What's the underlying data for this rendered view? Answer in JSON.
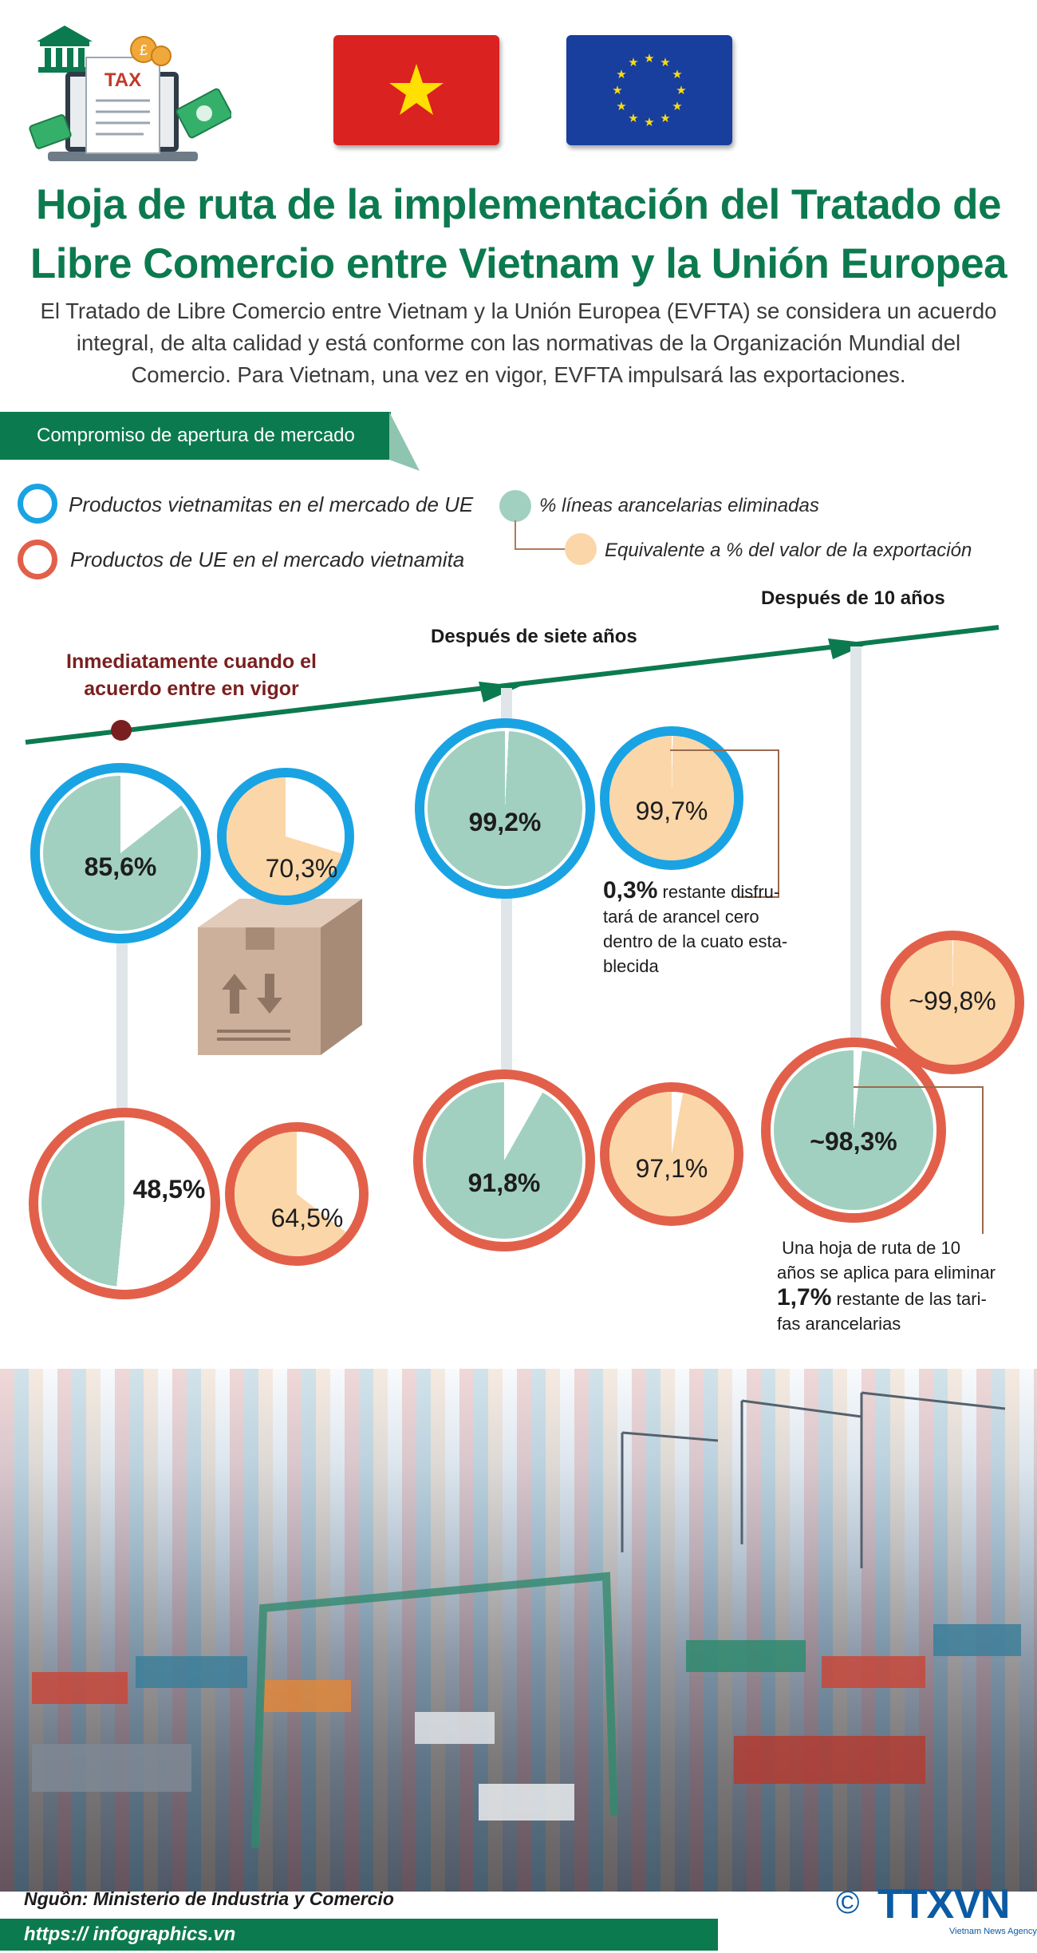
{
  "title_lines": [
    "Hoja de ruta de la implementación del Tratado de",
    "Libre Comercio entre Vietnam y la Unión Europea"
  ],
  "intro_lines": [
    "El Tratado de Libre Comercio entre Vietnam y la Unión Europea (EVFTA) se considera un acuerdo",
    "integral, de alta calidad y está conforme con las normativas de la Organización Mundial del",
    "Comercio. Para Vietnam, una vez en vigor, EVFTA impulsará las exportaciones."
  ],
  "header_art": {
    "tax_label": "TAX"
  },
  "section": {
    "banner": "Compromiso de apertura de mercado"
  },
  "legend": {
    "vn_products": "Productos vietnamitas en el mercado de UE",
    "eu_products": "Productos de UE en el mercado vietnamita",
    "lines_eliminated": "% líneas arancelarias eliminadas",
    "export_value": "Equivalente a % del valor de la exportación"
  },
  "colors": {
    "brand_green": "#0c7a4f",
    "ring_blue": "#1aa3e3",
    "ring_red": "#e2604a",
    "pie_green": "#a2d0c0",
    "pie_peach": "#fbd6a8",
    "timeline_dot": "#7a1f1f"
  },
  "milestones": {
    "m1_line1": "Inmediatamente cuando el",
    "m1_line2": "acuerdo  entre en vigor",
    "m2": "Después de siete años",
    "m3": "Después de 10 años"
  },
  "pies": {
    "p1": {
      "label": "85,6%",
      "value": 85.6
    },
    "p2": {
      "label": "70,3%",
      "value": 70.3
    },
    "p3": {
      "label": "48,5%",
      "value": 48.5
    },
    "p4": {
      "label": "64,5%",
      "value": 64.5
    },
    "p5": {
      "label": "99,2%",
      "value": 99.2
    },
    "p6": {
      "label": "99,7%",
      "value": 99.7
    },
    "p7": {
      "label": "91,8%",
      "value": 91.8
    },
    "p8": {
      "label": "97,1%",
      "value": 97.1
    },
    "p9": {
      "label": "~99,8%",
      "value": 99.8
    },
    "p10": {
      "label": "~98,3%",
      "value": 98.3
    }
  },
  "note1": {
    "bold": "0,3%",
    "rest": " restante disfru-",
    "lines": [
      "tará de arancel cero",
      "dentro de la cuato esta-",
      "blecida"
    ]
  },
  "note2": {
    "lines": [
      " Una hoja de ruta de 10",
      "años se aplica para eliminar"
    ],
    "bold": "1,7%",
    "rest": " restante de las tari-",
    "last": "fas arancelarias"
  },
  "footer": {
    "source": "Nguồn: Ministerio de Industria y Comercio",
    "url": "https:// infographics.vn",
    "copyright": "©",
    "logo": "TTXVN",
    "logo_sub": "Vietnam News Agency"
  }
}
